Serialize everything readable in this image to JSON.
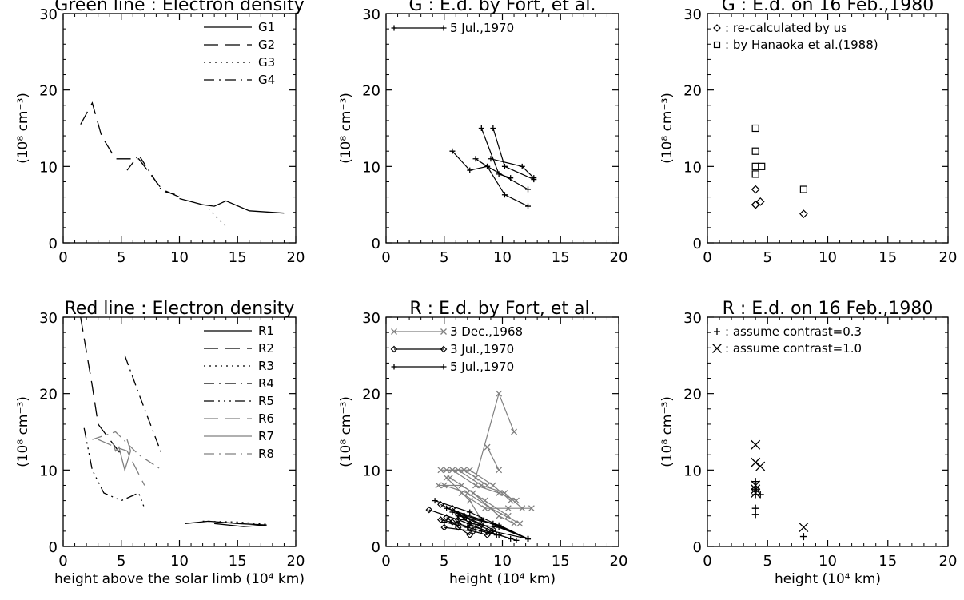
{
  "chart_data": [
    {
      "id": "p1",
      "type": "line",
      "title": "Green line : Electron density",
      "xlabel": "",
      "ylabel": "(10⁸ cm⁻³)",
      "xlim": [
        0,
        20
      ],
      "ylim": [
        0,
        30
      ],
      "xticks": [
        "0",
        "5",
        "10",
        "15",
        "20"
      ],
      "yticks": [
        "0",
        "10",
        "20",
        "30"
      ],
      "series": [
        {
          "name": "G1",
          "dash": "solid",
          "color": "#000000",
          "x": [
            10,
            12,
            13,
            14,
            16,
            19
          ],
          "y": [
            5.8,
            5.0,
            4.8,
            5.5,
            4.2,
            3.9
          ]
        },
        {
          "name": "G2",
          "dash": "longdash",
          "color": "#000000",
          "x": [
            1.5,
            2.5,
            3.3,
            4.5,
            6.5,
            8.5,
            10
          ],
          "y": [
            15.5,
            18.3,
            14,
            11,
            11,
            7,
            6
          ]
        },
        {
          "name": "G3",
          "dash": "dot",
          "color": "#000000",
          "x": [
            12.5,
            13.3,
            14
          ],
          "y": [
            4.5,
            3.2,
            2.2
          ]
        },
        {
          "name": "G4",
          "dash": "dashdot",
          "color": "#000000",
          "x": [
            5.5,
            6.5,
            8.5,
            10
          ],
          "y": [
            9.5,
            11.5,
            6.8,
            6.2
          ]
        }
      ],
      "legend": "top-right"
    },
    {
      "id": "p2",
      "type": "line",
      "title": "G : E.d. by Fort, et al.",
      "xlabel": "",
      "ylabel": "(10⁸ cm⁻³)",
      "xlim": [
        0,
        20
      ],
      "ylim": [
        0,
        30
      ],
      "xticks": [
        "0",
        "5",
        "10",
        "15",
        "20"
      ],
      "yticks": [
        "0",
        "10",
        "20",
        "30"
      ],
      "series": [
        {
          "name": "5 Jul.,1970",
          "marker": "plus",
          "color": "#000000",
          "segments": [
            {
              "x": [
                5.7,
                7.2,
                8.7,
                10.2,
                12.2
              ],
              "y": [
                12,
                9.5,
                10,
                6.3,
                4.8
              ]
            },
            {
              "x": [
                7.7,
                8.7,
                12.2
              ],
              "y": [
                11,
                10,
                7
              ]
            },
            {
              "x": [
                8.2,
                9.7,
                10.7
              ],
              "y": [
                15,
                9,
                8.5
              ]
            },
            {
              "x": [
                9.2,
                10.2,
                12.7
              ],
              "y": [
                15,
                10,
                8.3
              ]
            },
            {
              "x": [
                9.0,
                11.7,
                12.7
              ],
              "y": [
                11,
                10,
                8.5
              ]
            }
          ]
        }
      ],
      "legend": "top-left"
    },
    {
      "id": "p3",
      "type": "scatter",
      "title": "G : E.d. on 16 Feb.,1980",
      "xlabel": "",
      "ylabel": "(10⁸ cm⁻³)",
      "xlim": [
        0,
        20
      ],
      "ylim": [
        0,
        30
      ],
      "xticks": [
        "0",
        "5",
        "10",
        "15",
        "20"
      ],
      "yticks": [
        "0",
        "10",
        "20",
        "30"
      ],
      "series": [
        {
          "name": "re-calculated by us",
          "legend_label": ": re-calculated by us",
          "marker": "diamond",
          "color": "#000000",
          "x": [
            4.0,
            4.0,
            4.0,
            4.4,
            8.0
          ],
          "y": [
            5.0,
            7.0,
            5.0,
            5.4,
            3.8
          ]
        },
        {
          "name": "by Hanaoka et al.(1988)",
          "legend_label": ": by Hanaoka et al.(1988)",
          "marker": "square",
          "color": "#000000",
          "x": [
            4.0,
            4.0,
            4.0,
            4.0,
            4.5,
            8.0
          ],
          "y": [
            15.0,
            12.0,
            10.0,
            9.0,
            10.0,
            7.0
          ]
        }
      ],
      "legend": "top-left"
    },
    {
      "id": "p4",
      "type": "line",
      "title": "Red line : Electron density",
      "xlabel": "height above the solar limb (10⁴ km)",
      "ylabel": "(10⁸ cm⁻³)",
      "xlim": [
        0,
        20
      ],
      "ylim": [
        0,
        30
      ],
      "xticks": [
        "0",
        "5",
        "10",
        "15",
        "20"
      ],
      "yticks": [
        "0",
        "10",
        "20",
        "30"
      ],
      "series": [
        {
          "name": "R1",
          "dash": "solid",
          "color": "#000000",
          "x": [
            10.5,
            12.5,
            15,
            17.5,
            15.5,
            13
          ],
          "y": [
            3.0,
            3.3,
            3.0,
            2.8,
            2.6,
            3.0
          ]
        },
        {
          "name": "R2",
          "dash": "longdash",
          "color": "#000000",
          "x": [
            1.5,
            2.5,
            3.0,
            4.0,
            5.0
          ],
          "y": [
            30,
            21,
            16,
            14,
            12
          ]
        },
        {
          "name": "R3",
          "dash": "dot",
          "color": "#000000",
          "x": [
            12,
            15,
            17.5
          ],
          "y": [
            3.3,
            3.2,
            2.9
          ]
        },
        {
          "name": "R4",
          "dash": "dashdot",
          "color": "#000000",
          "x": [
            5.3,
            6.5,
            7.5,
            8.5
          ],
          "y": [
            25,
            20,
            16,
            12
          ]
        },
        {
          "name": "R5",
          "dash": "dashdotdotdot",
          "color": "#000000",
          "x": [
            1.8,
            2.5,
            3.5,
            5.0,
            6.5,
            7.0
          ],
          "y": [
            15.5,
            10,
            7,
            6,
            7,
            5
          ]
        },
        {
          "name": "R6",
          "dash": "longdash",
          "color": "#808080",
          "x": [
            3.0,
            4.5,
            5.5,
            7.0
          ],
          "y": [
            14,
            13,
            12.5,
            8
          ]
        },
        {
          "name": "R7",
          "dash": "solid",
          "color": "#808080",
          "x": [
            4.3,
            4.5,
            4.8,
            5.3,
            5.8,
            5.5
          ],
          "y": [
            13.5,
            12.5,
            13,
            10,
            12.5,
            14
          ]
        },
        {
          "name": "R8",
          "dash": "dashdot",
          "color": "#808080",
          "x": [
            2.5,
            4.5,
            6.5,
            8.5
          ],
          "y": [
            14,
            15,
            12,
            10
          ]
        }
      ],
      "legend": "top-right"
    },
    {
      "id": "p5",
      "type": "line",
      "title": "R : E.d. by Fort, et al.",
      "xlabel": "height (10⁴ km)",
      "ylabel": "(10⁸ cm⁻³)",
      "xlim": [
        0,
        20
      ],
      "ylim": [
        0,
        30
      ],
      "xticks": [
        "0",
        "5",
        "10",
        "15",
        "20"
      ],
      "yticks": [
        "0",
        "10",
        "20",
        "30"
      ],
      "series": [
        {
          "name": "3 Dec.,1968",
          "marker": "x",
          "color": "#808080",
          "segments": [
            {
              "x": [
                4.7,
                6.7,
                8.7
              ],
              "y": [
                10,
                10,
                8
              ]
            },
            {
              "x": [
                5.2,
                7.2,
                9.2,
                10.7
              ],
              "y": [
                10,
                10,
                8,
                6
              ]
            },
            {
              "x": [
                5.7,
                7.7,
                9.7,
                11.2
              ],
              "y": [
                10,
                8,
                7,
                6
              ]
            },
            {
              "x": [
                6.2,
                8.2,
                10.2,
                11.7
              ],
              "y": [
                10,
                8,
                7,
                5
              ]
            },
            {
              "x": [
                4.5,
                6.5,
                8.5,
                10.5
              ],
              "y": [
                8,
                8,
                6,
                4
              ]
            },
            {
              "x": [
                5.0,
                7.0,
                9.0,
                11.5
              ],
              "y": [
                8,
                7,
                5,
                3
              ]
            },
            {
              "x": [
                5.5,
                7.5,
                9.7,
                11.0
              ],
              "y": [
                9,
                7,
                4,
                3
              ]
            },
            {
              "x": [
                8.7,
                9.7
              ],
              "y": [
                13,
                10
              ]
            },
            {
              "x": [
                7.7,
                9.7,
                11.0
              ],
              "y": [
                9,
                20,
                15
              ]
            },
            {
              "x": [
                6.5,
                8.5,
                10.5,
                12.5
              ],
              "y": [
                7,
                5,
                5,
                5
              ]
            },
            {
              "x": [
                5.2,
                7.2,
                8.2
              ],
              "y": [
                9,
                6,
                3.5
              ]
            }
          ]
        },
        {
          "name": "3 Jul.,1970",
          "marker": "diamond",
          "color": "#000000",
          "segments": [
            {
              "x": [
                3.7,
                6.2,
                8.7
              ],
              "y": [
                4.8,
                3.5,
                2.0
              ]
            },
            {
              "x": [
                4.7,
                6.7,
                9.2
              ],
              "y": [
                5.5,
                4.0,
                2.2
              ]
            },
            {
              "x": [
                5.2,
                5.7,
                6.2,
                7.2
              ],
              "y": [
                3.8,
                3.2,
                2.5,
                1.5
              ]
            },
            {
              "x": [
                5.7,
                7.2
              ],
              "y": [
                5.0,
                3.0
              ]
            },
            {
              "x": [
                6.2,
                8.2
              ],
              "y": [
                4.2,
                2.8
              ]
            },
            {
              "x": [
                5.0,
                7.5,
                8.7
              ],
              "y": [
                2.5,
                2.0,
                1.5
              ]
            },
            {
              "x": [
                4.7,
                6.2,
                7.2
              ],
              "y": [
                3.5,
                3.0,
                2.5
              ]
            }
          ]
        },
        {
          "name": "5 Jul.,1970",
          "marker": "plus",
          "color": "#000000",
          "segments": [
            {
              "x": [
                4.2,
                7.2,
                12.2
              ],
              "y": [
                6.0,
                4.5,
                1.0
              ]
            },
            {
              "x": [
                5.2,
                8.2,
                12.2
              ],
              "y": [
                5.0,
                3.5,
                1.0
              ]
            },
            {
              "x": [
                5.7,
                9.2,
                12.2
              ],
              "y": [
                4.5,
                3.0,
                1.0
              ]
            },
            {
              "x": [
                6.2,
                9.7,
                12.2
              ],
              "y": [
                4.0,
                2.8,
                1.0
              ]
            },
            {
              "x": [
                6.7,
                9.2,
                12.2
              ],
              "y": [
                3.5,
                2.0,
                1.0
              ]
            },
            {
              "x": [
                7.2,
                9.7,
                12.2
              ],
              "y": [
                3.0,
                2.5,
                1.0
              ]
            },
            {
              "x": [
                7.7,
                10.7
              ],
              "y": [
                2.5,
                1.0
              ]
            },
            {
              "x": [
                5.0,
                7.0,
                9.5
              ],
              "y": [
                3.2,
                2.5,
                1.5
              ]
            },
            {
              "x": [
                8.2,
                9.7,
                11.2
              ],
              "y": [
                2.0,
                1.5,
                0.8
              ]
            }
          ]
        }
      ],
      "legend": "top-left"
    },
    {
      "id": "p6",
      "type": "scatter",
      "title": "R : E.d. on 16 Feb.,1980",
      "xlabel": "height (10⁴ km)",
      "ylabel": "(10⁸ cm⁻³)",
      "xlim": [
        0,
        20
      ],
      "ylim": [
        0,
        30
      ],
      "xticks": [
        "0",
        "5",
        "10",
        "15",
        "20"
      ],
      "yticks": [
        "0",
        "10",
        "20",
        "30"
      ],
      "series": [
        {
          "name": "assume contrast=0.3",
          "legend_label": ": assume contrast=0.3",
          "marker": "plus",
          "color": "#000000",
          "x": [
            4.0,
            4.0,
            4.0,
            4.0,
            4.0,
            4.4,
            8.0
          ],
          "y": [
            8.5,
            7.5,
            6.8,
            5.0,
            4.2,
            6.8,
            1.3
          ]
        },
        {
          "name": "assume contrast=1.0",
          "legend_label": ": assume contrast=1.0",
          "marker": "x",
          "color": "#000000",
          "x": [
            4.0,
            4.0,
            4.0,
            4.0,
            4.0,
            4.4,
            8.0
          ],
          "y": [
            13.3,
            11.0,
            8.0,
            7.5,
            7.0,
            10.5,
            2.5
          ]
        }
      ],
      "legend": "top-left"
    }
  ]
}
